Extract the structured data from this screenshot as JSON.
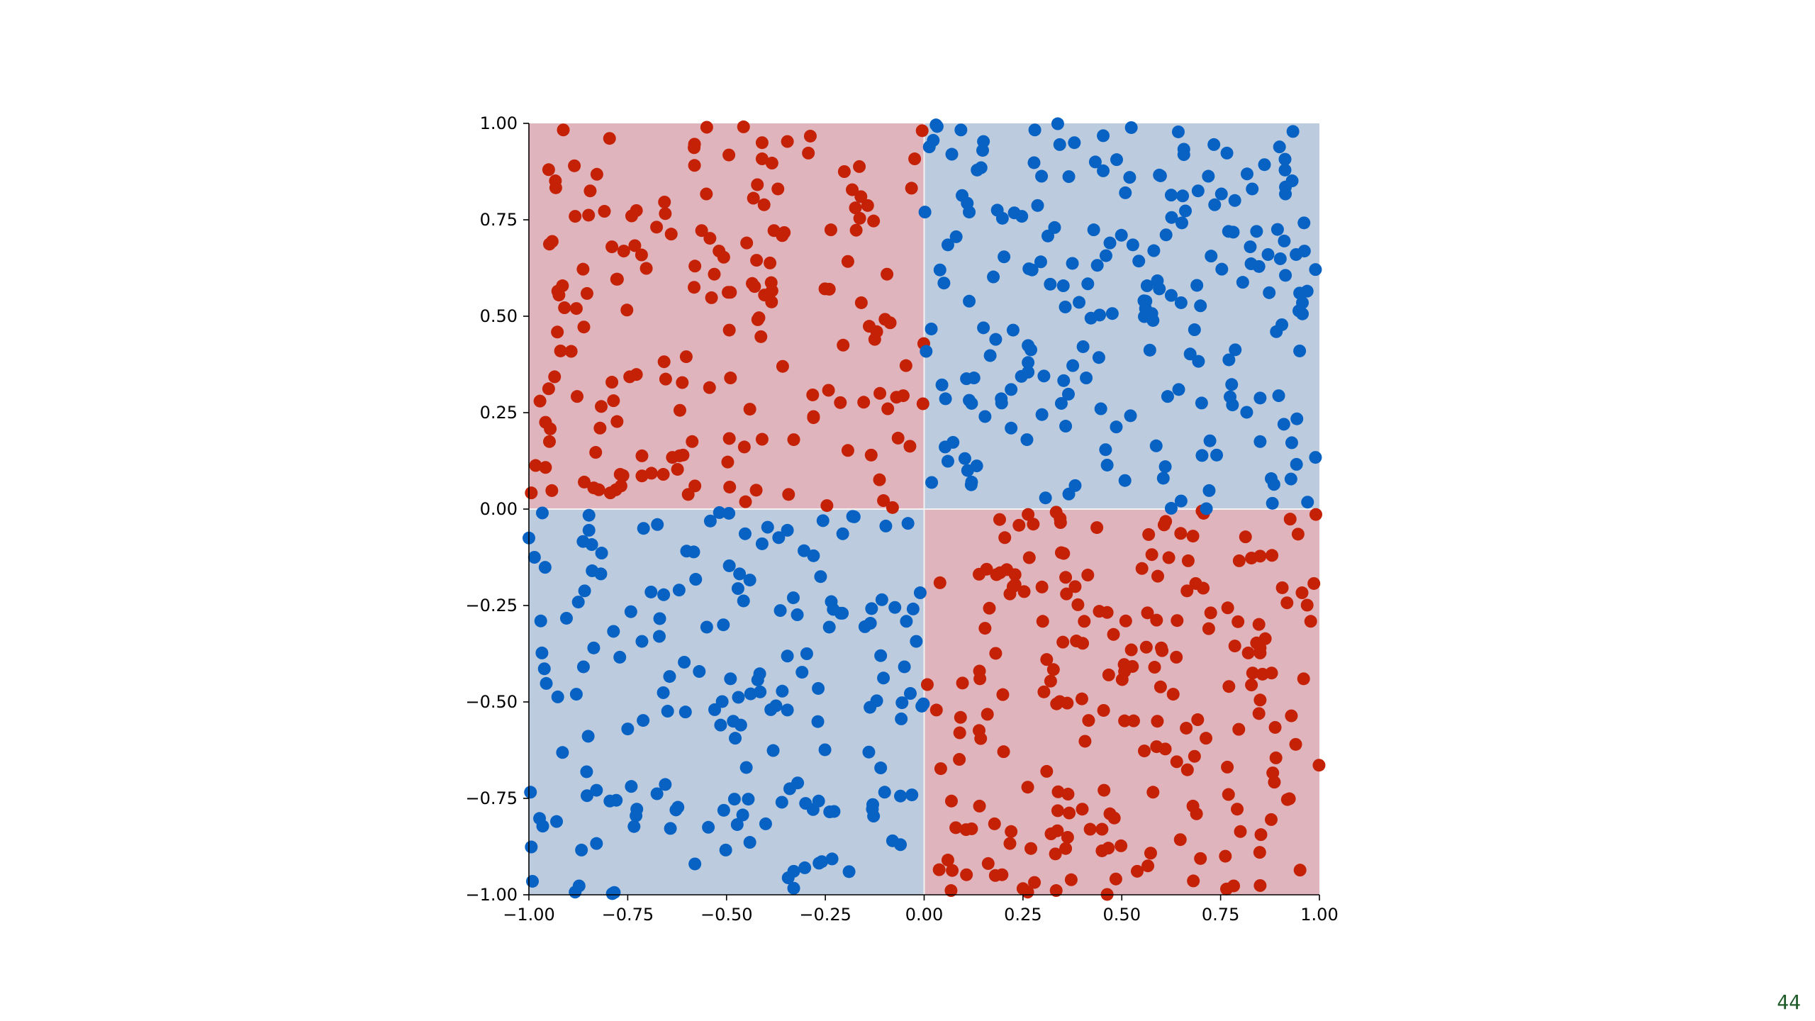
{
  "page": {
    "number": "44"
  },
  "chart_data": {
    "type": "scatter",
    "title": "",
    "xlabel": "",
    "ylabel": "",
    "xlim": [
      -1,
      1
    ],
    "ylim": [
      -1,
      1
    ],
    "xticks": [
      "−1.00",
      "−0.75",
      "−0.50",
      "−0.25",
      "0.00",
      "0.25",
      "0.50",
      "0.75",
      "1.00"
    ],
    "yticks": [
      "−1.00",
      "−0.75",
      "−0.50",
      "−0.25",
      "0.00",
      "0.25",
      "0.50",
      "0.75",
      "1.00"
    ],
    "grid": false,
    "legend": "none",
    "decision_regions": [
      {
        "class": "red",
        "x": [
          -1,
          0
        ],
        "y": [
          0,
          1
        ],
        "color": "#e0b4bc"
      },
      {
        "class": "blue",
        "x": [
          0,
          1
        ],
        "y": [
          0,
          1
        ],
        "color": "#bccbdd"
      },
      {
        "class": "blue",
        "x": [
          -1,
          0
        ],
        "y": [
          -1,
          0
        ],
        "color": "#bccbdd"
      },
      {
        "class": "red",
        "x": [
          0,
          1
        ],
        "y": [
          -1,
          0
        ],
        "color": "#e0b4bc"
      }
    ],
    "colors": {
      "red": "#c42106",
      "blue": "#0762c4",
      "red_region": "#e0b4bc",
      "blue_region": "#bccbdd"
    },
    "series": [
      {
        "class": "red",
        "rule": "x*y < 0",
        "count": 400,
        "x": [
          -0.95,
          -0.88,
          -0.82,
          -0.74,
          -0.66,
          -0.58,
          -0.49,
          -0.41,
          -0.33,
          -0.24,
          -0.16,
          -0.07,
          -0.92,
          -0.79,
          -0.61,
          -0.37,
          -0.12,
          -0.55,
          -0.28,
          -0.86,
          0.06,
          0.14,
          0.23,
          0.31,
          0.42,
          0.51,
          0.59,
          0.68,
          0.77,
          0.85,
          0.94,
          0.18,
          0.36,
          0.63,
          0.88,
          0.47,
          0.72,
          0.09,
          0.27,
          0.96
        ],
        "y": [
          0.88,
          0.52,
          0.21,
          0.76,
          0.09,
          0.63,
          0.34,
          0.95,
          0.18,
          0.57,
          0.81,
          0.29,
          0.41,
          0.68,
          0.14,
          0.83,
          0.46,
          0.99,
          0.24,
          0.07,
          -0.91,
          -0.42,
          -0.17,
          -0.68,
          -0.83,
          -0.29,
          -0.55,
          -0.07,
          -0.74,
          -0.36,
          -0.61,
          -0.95,
          -0.22,
          -0.48,
          -0.12,
          -0.79,
          -0.31,
          -0.58,
          -0.88,
          -0.44
        ]
      },
      {
        "class": "blue",
        "rule": "x*y > 0",
        "count": 400,
        "x": [
          0.07,
          0.15,
          0.26,
          0.33,
          0.41,
          0.52,
          0.61,
          0.69,
          0.78,
          0.87,
          0.95,
          0.12,
          0.38,
          0.56,
          0.83,
          0.22,
          0.47,
          0.74,
          0.04,
          0.91,
          -0.93,
          -0.84,
          -0.75,
          -0.67,
          -0.58,
          -0.49,
          -0.41,
          -0.32,
          -0.23,
          -0.14,
          -0.06,
          -0.88,
          -0.62,
          -0.36,
          -0.11,
          -0.71,
          -0.45,
          -0.19,
          -0.97,
          -0.53
        ],
        "y": [
          0.92,
          0.47,
          0.18,
          0.73,
          0.34,
          0.86,
          0.11,
          0.58,
          0.27,
          0.66,
          0.41,
          0.07,
          0.95,
          0.52,
          0.83,
          0.31,
          0.69,
          0.14,
          0.62,
          0.22,
          -0.81,
          -0.16,
          -0.57,
          -0.33,
          -0.92,
          -0.44,
          -0.09,
          -0.71,
          -0.26,
          -0.63,
          -0.87,
          -0.48,
          -0.21,
          -0.76,
          -0.38,
          -0.05,
          -0.67,
          -0.94,
          -0.29,
          -0.52
        ]
      }
    ]
  }
}
